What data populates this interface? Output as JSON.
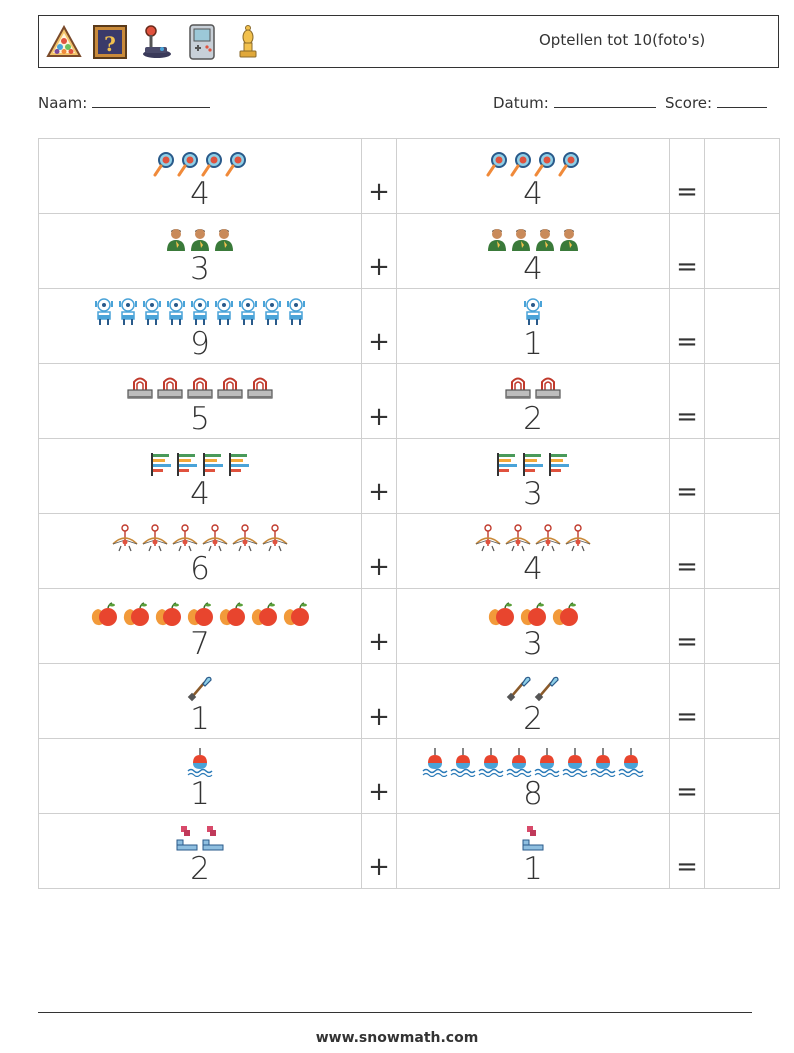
{
  "header": {
    "title": "Optellen tot 10(foto's)",
    "icons": [
      "billiard-rack-icon",
      "question-card-icon",
      "joystick-icon",
      "handheld-console-icon",
      "chess-bishop-icon"
    ]
  },
  "meta": {
    "name_label": "Naam:",
    "date_label": "Datum:",
    "score_label": "Score:"
  },
  "operators": {
    "plus": "+",
    "equals": "="
  },
  "rows": [
    {
      "a": "4",
      "a_icon": "magnifier-icon",
      "b": "4",
      "b_icon": "magnifier-icon"
    },
    {
      "a": "3",
      "a_icon": "person-icon",
      "b": "4",
      "b_icon": "person-icon"
    },
    {
      "a": "9",
      "a_icon": "robot-icon",
      "b": "1",
      "b_icon": "robot-icon"
    },
    {
      "a": "5",
      "a_icon": "binder-clip-icon",
      "b": "2",
      "b_icon": "binder-clip-icon"
    },
    {
      "a": "4",
      "a_icon": "bar-chart-icon",
      "b": "3",
      "b_icon": "bar-chart-icon"
    },
    {
      "a": "6",
      "a_icon": "archer-icon",
      "b": "4",
      "b_icon": "archer-icon"
    },
    {
      "a": "7",
      "a_icon": "fruit-icon",
      "b": "3",
      "b_icon": "fruit-icon"
    },
    {
      "a": "1",
      "a_icon": "shovel-icon",
      "b": "2",
      "b_icon": "shovel-icon"
    },
    {
      "a": "1",
      "a_icon": "fishing-float-icon",
      "b": "8",
      "b_icon": "fishing-float-icon"
    },
    {
      "a": "2",
      "a_icon": "blocks-icon",
      "b": "1",
      "b_icon": "blocks-icon"
    }
  ],
  "footer": {
    "url": "www.snowmath.com"
  }
}
